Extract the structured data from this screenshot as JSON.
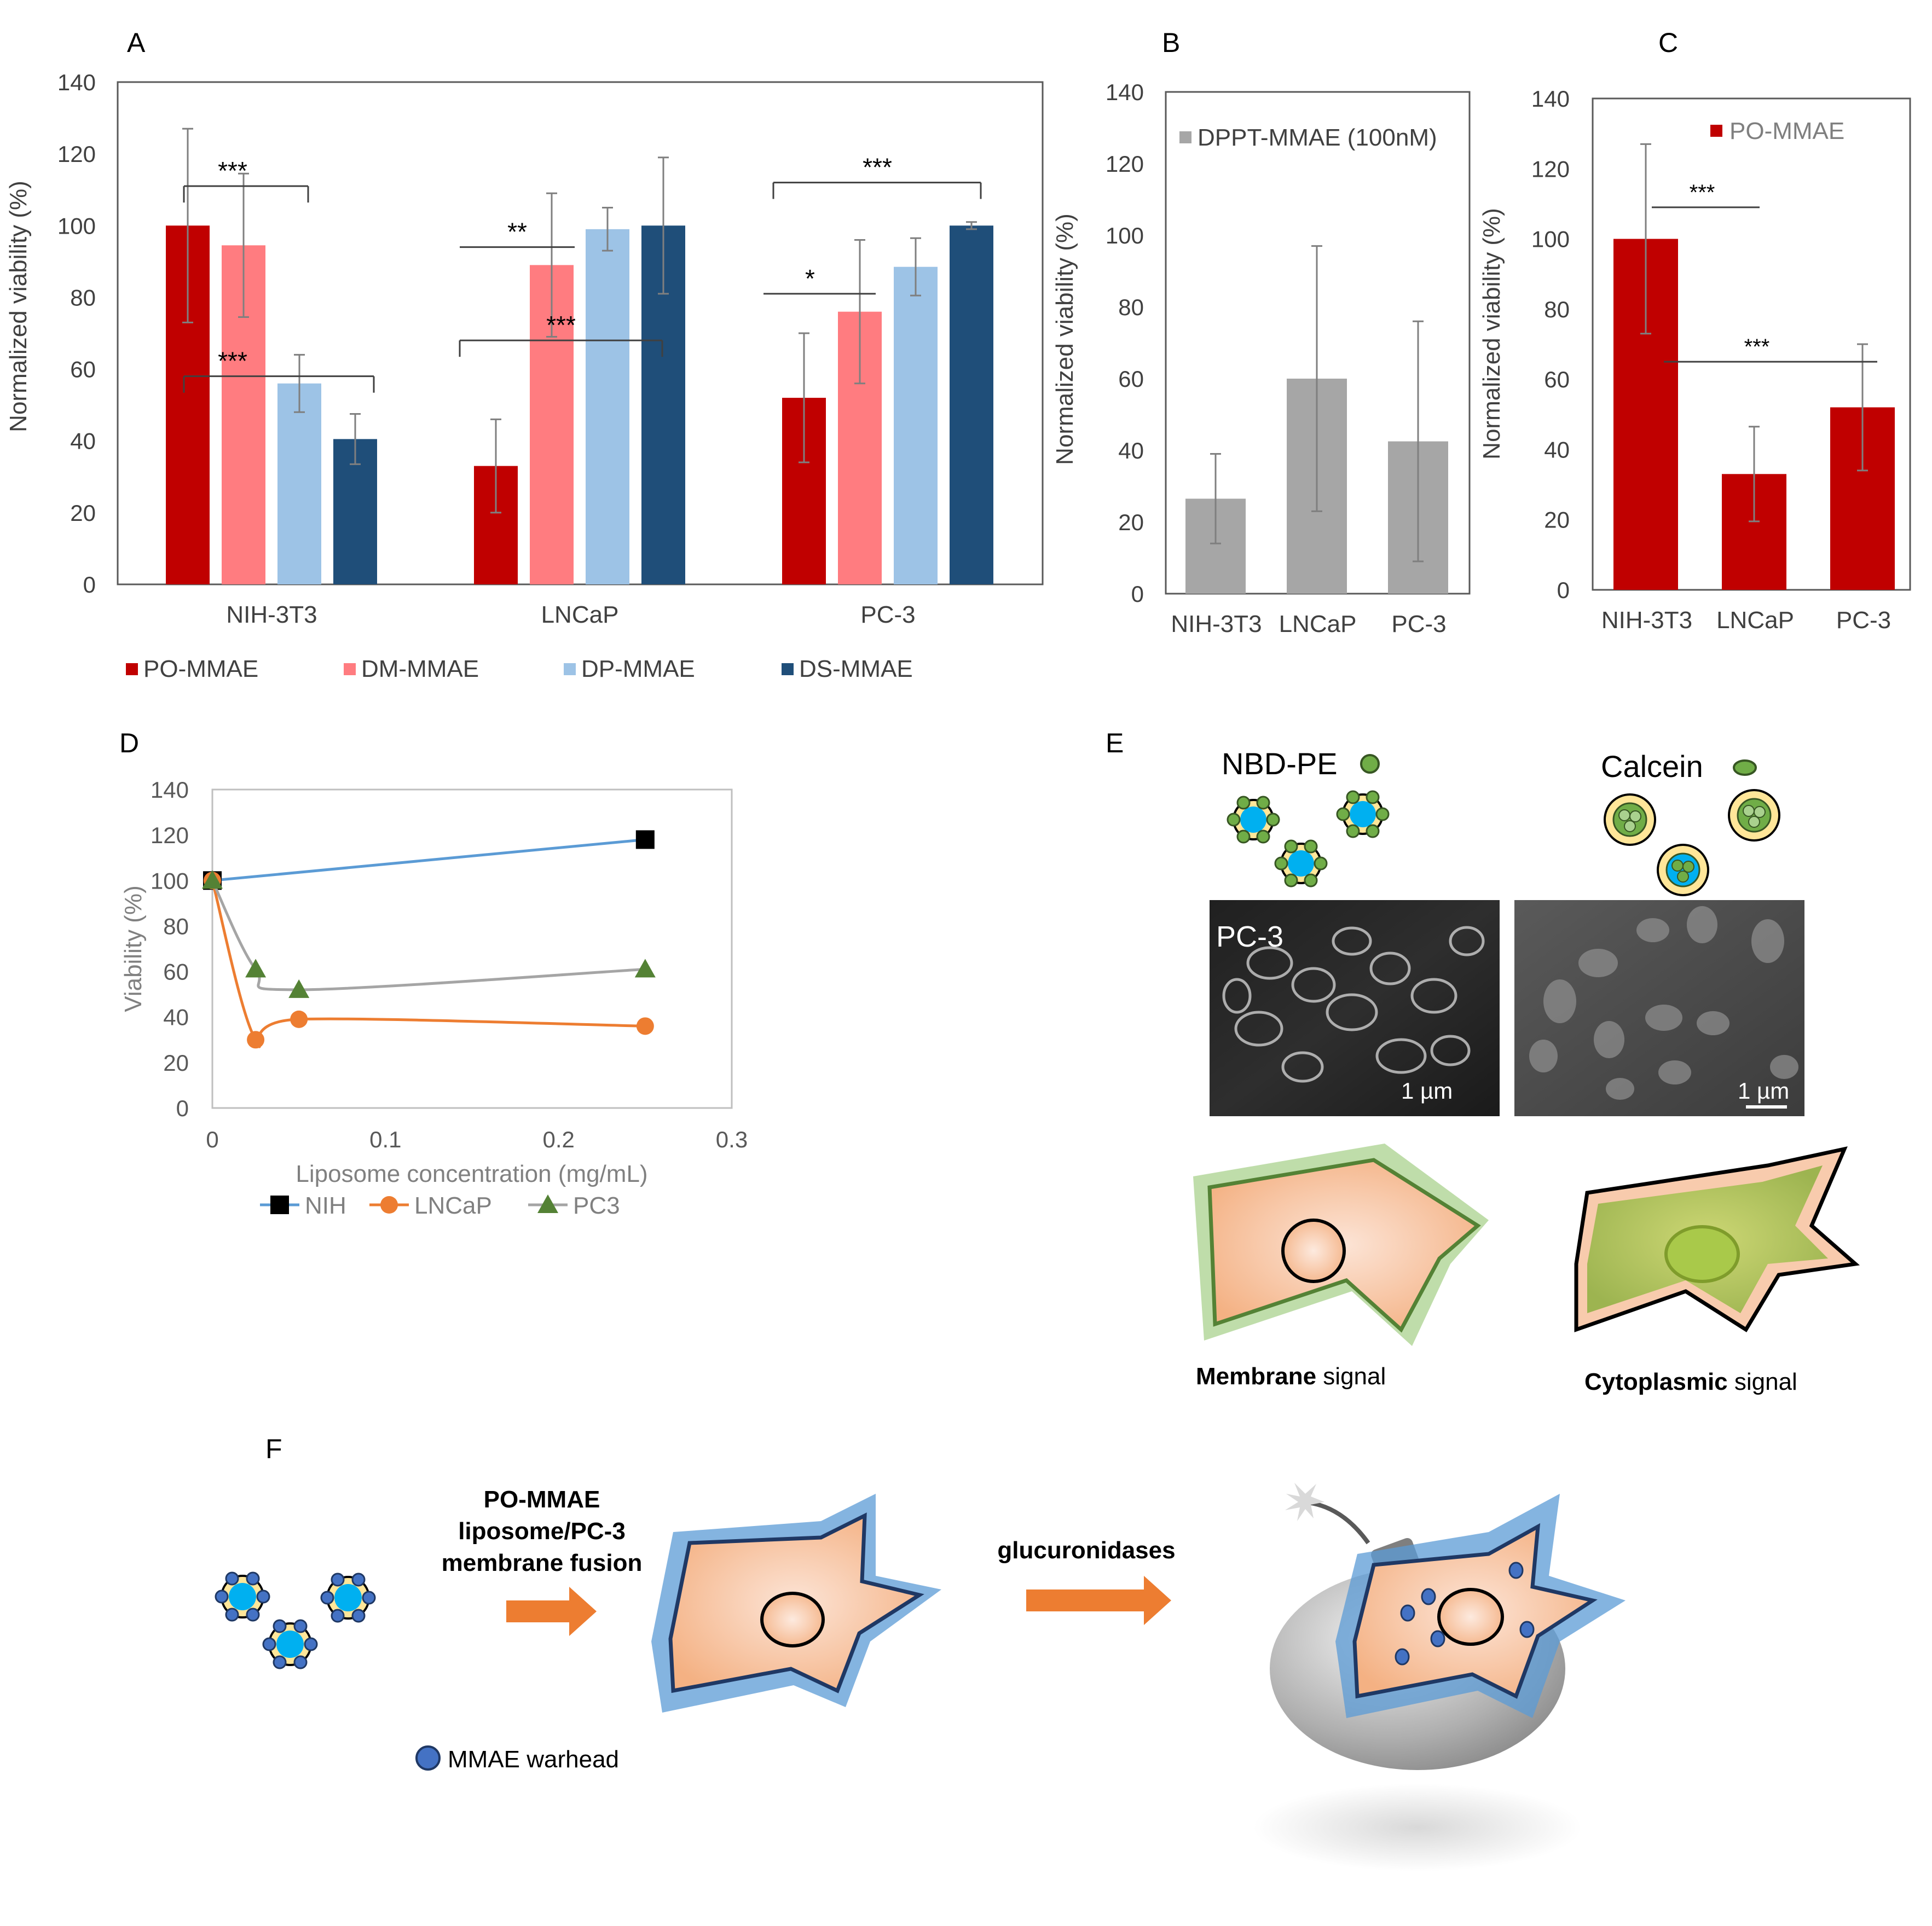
{
  "colors": {
    "po": "#C00000",
    "dm": "#FF7C80",
    "dp": "#9DC3E6",
    "ds": "#1F4E79",
    "gray": "#A6A6A6",
    "nih_line": "#5B9BD5",
    "lncap_line": "#ED7D31",
    "pc3_line": "#A5A5A5",
    "pc3_marker": "#548235"
  },
  "chart_data": [
    {
      "panel": "A",
      "type": "bar",
      "title": "",
      "xlabel": "",
      "ylabel": "Normalized viability (%)",
      "ylim": [
        0,
        140
      ],
      "yticks": [
        "0",
        "20",
        "40",
        "60",
        "80",
        "100",
        "120",
        "140"
      ],
      "categories": [
        "NIH-3T3",
        "LNCaP",
        "PC-3"
      ],
      "series": [
        {
          "name": "PO-MMAE",
          "values": [
            100,
            33,
            52
          ],
          "errors": [
            27,
            13,
            18
          ]
        },
        {
          "name": "DM-MMAE",
          "values": [
            94.5,
            89,
            76
          ],
          "errors": [
            20,
            20,
            20
          ]
        },
        {
          "name": "DP-MMAE",
          "values": [
            56,
            99,
            88.5
          ],
          "errors": [
            8,
            6,
            8
          ]
        },
        {
          "name": "DS-MMAE",
          "values": [
            40.5,
            100,
            100
          ],
          "errors": [
            7,
            19,
            1
          ]
        }
      ],
      "significance": [
        "***",
        "***",
        "**",
        "***",
        "*",
        "***"
      ],
      "legend_position": "bottom"
    },
    {
      "panel": "B",
      "type": "bar",
      "ylabel": "Normalized viability (%)",
      "ylim": [
        0,
        140
      ],
      "yticks": [
        "0",
        "20",
        "40",
        "60",
        "80",
        "100",
        "120",
        "140"
      ],
      "categories": [
        "NIH-3T3",
        "LNCaP",
        "PC-3"
      ],
      "series": [
        {
          "name": "DPPT-MMAE (100nM)",
          "values": [
            26.5,
            60,
            42.5
          ],
          "errors": [
            12.5,
            37,
            33.5
          ]
        }
      ],
      "legend_position": "top"
    },
    {
      "panel": "C",
      "type": "bar",
      "ylabel": "Normalized viability (%)",
      "ylim": [
        0,
        140
      ],
      "yticks": [
        "0",
        "20",
        "40",
        "60",
        "80",
        "100",
        "120",
        "140"
      ],
      "categories": [
        "NIH-3T3",
        "LNCaP",
        "PC-3"
      ],
      "series": [
        {
          "name": "PO-MMAE",
          "values": [
            100,
            33,
            52
          ],
          "errors": [
            27,
            13.5,
            18
          ]
        }
      ],
      "significance": [
        "***",
        "***"
      ],
      "legend_position": "top-right"
    },
    {
      "panel": "D",
      "type": "line",
      "xlabel": "Liposome concentration (mg/mL)",
      "ylabel": "Viability (%)",
      "xlim": [
        0,
        0.3
      ],
      "ylim": [
        0,
        140
      ],
      "xticks": [
        "0",
        "0.1",
        "0.2",
        "0.3"
      ],
      "yticks": [
        "0",
        "20",
        "40",
        "60",
        "80",
        "100",
        "120",
        "140"
      ],
      "series": [
        {
          "name": "NIH",
          "x": [
            0,
            0.25
          ],
          "y": [
            100,
            118
          ],
          "marker": "square"
        },
        {
          "name": "LNCaP",
          "x": [
            0,
            0.025,
            0.05,
            0.25
          ],
          "y": [
            100,
            30,
            39,
            36
          ],
          "marker": "circle"
        },
        {
          "name": "PC3",
          "x": [
            0,
            0.025,
            0.05,
            0.25
          ],
          "y": [
            100,
            61,
            52,
            61
          ],
          "marker": "triangle"
        }
      ],
      "legend_position": "bottom"
    }
  ],
  "panels": {
    "a": "A",
    "b": "B",
    "c": "C",
    "d": "D",
    "e": "E",
    "f": "F"
  },
  "panel_e": {
    "nbd_title": "NBD-PE",
    "calcein_title": "Calcein",
    "image_label": "PC-3",
    "scale_left": "1 µm",
    "scale_right": "1 µm",
    "membrane_bold": "Membrane",
    "membrane_rest": " signal",
    "cyto_bold": "Cytoplasmic",
    "cyto_rest": " signal"
  },
  "panel_f": {
    "step1_line1": "PO-MMAE",
    "step1_line2": "liposome/PC-3",
    "step1_line3": "membrane fusion",
    "step2": "glucuronidases",
    "legend": "MMAE warhead"
  }
}
